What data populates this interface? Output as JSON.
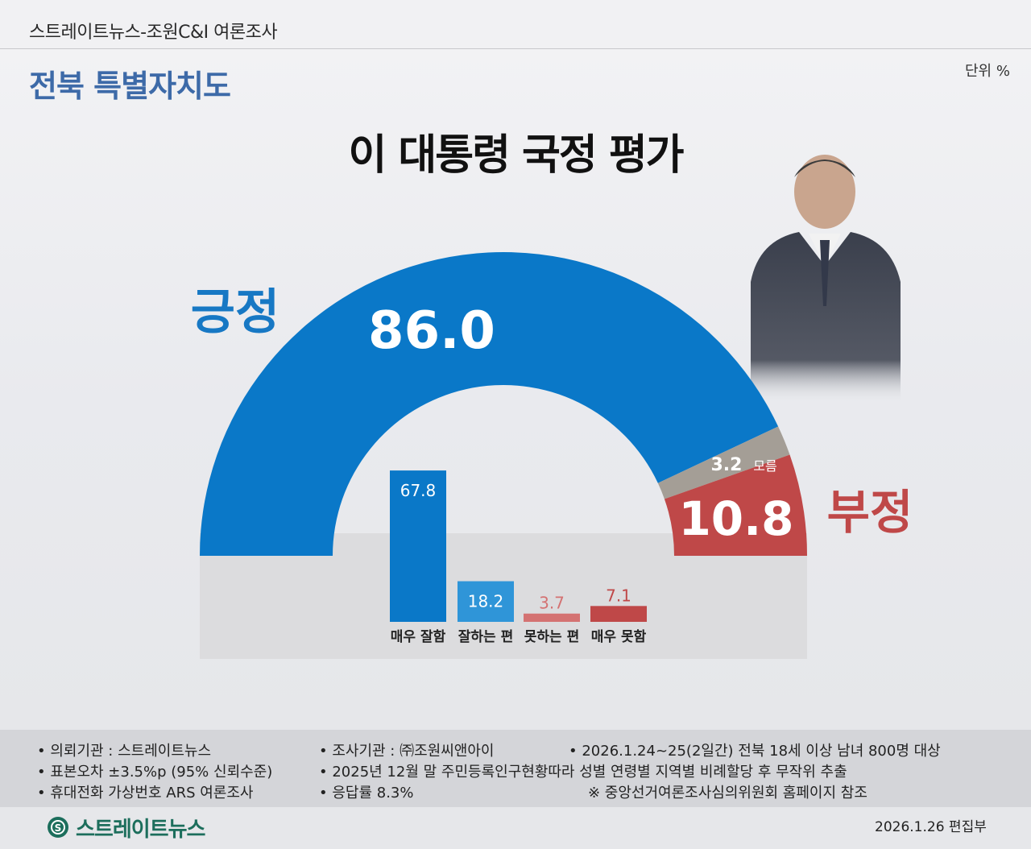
{
  "header": {
    "title": "스트레이트뉴스-조원C&I 여론조사"
  },
  "region": "전북 특별자치도",
  "unit": "단위 %",
  "title": "이 대통령 국정 평가",
  "chart_data": [
    {
      "type": "pie",
      "subtype": "semi-donut",
      "categories": [
        "긍정",
        "모름",
        "부정"
      ],
      "values": [
        86.0,
        3.2,
        10.8
      ],
      "colors": [
        "#0a78c8",
        "#a49e96",
        "#bf4848"
      ],
      "labels": {
        "positive": "긍정",
        "positive_value": "86.0",
        "unknown_value": "3.2",
        "unknown_label": "모름",
        "negative": "부정",
        "negative_value": "10.8"
      }
    },
    {
      "type": "bar",
      "categories": [
        "매우 잘함",
        "잘하는 편",
        "못하는 편",
        "매우 못함"
      ],
      "values": [
        67.8,
        18.2,
        3.7,
        7.1
      ],
      "value_labels": [
        "67.8",
        "18.2",
        "3.7",
        "7.1"
      ],
      "colors": [
        "#0a78c8",
        "#2f95d8",
        "#d47272",
        "#bf4848"
      ],
      "ylim": [
        0,
        70
      ]
    }
  ],
  "footer": {
    "col1": [
      "• 의뢰기관 : 스트레이트뉴스",
      "• 표본오차 ±3.5%p (95% 신뢰수준)",
      "• 휴대전화 가상번호 ARS 여론조사"
    ],
    "col2": [
      "• 조사기관 : ㈜조원씨앤아이",
      "• 2025년 12월 말 주민등록인구현황따라 성별 연령별 지역별 비례할당 후 무작위 추출",
      "• 응답률 8.3%"
    ],
    "col3": [
      "• 2026.1.24~25(2일간) 전북 18세 이상 남녀 800명 대상",
      "※ 중앙선거여론조사심의위원회 홈페이지 참조"
    ]
  },
  "logo": "스트레이트뉴스",
  "date": "2026.1.26  편집부"
}
